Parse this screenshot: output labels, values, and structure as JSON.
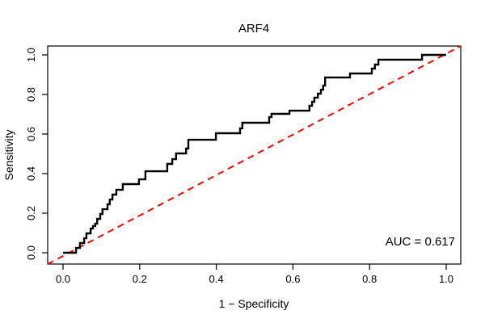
{
  "figure": {
    "background_color": "#ffffff",
    "axis_color": "#000000"
  },
  "chart_data": {
    "type": "line",
    "subtype": "roc-curve-step-plot",
    "title": "ARF4",
    "xlabel": "1 − Specificity",
    "ylabel": "Sensitivity",
    "xlim": [
      0,
      1
    ],
    "ylim": [
      0,
      1
    ],
    "grid": false,
    "legend": false,
    "x_ticks": [
      0.0,
      0.2,
      0.4,
      0.6,
      0.8,
      1.0
    ],
    "y_ticks": [
      0.0,
      0.2,
      0.4,
      0.6,
      0.8,
      1.0
    ],
    "x_tick_labels": [
      "0.0",
      "0.2",
      "0.4",
      "0.6",
      "0.8",
      "1.0"
    ],
    "y_tick_labels": [
      "0.0",
      "0.2",
      "0.4",
      "0.6",
      "0.8",
      "1.0"
    ],
    "annotation": "AUC = 0.617",
    "auc_value": 0.617,
    "series": [
      {
        "name": "ROC curve",
        "color": "#000000",
        "style": "solid",
        "line_width": 2.4,
        "points": [
          [
            0.0,
            0.0
          ],
          [
            0.034,
            0.0
          ],
          [
            0.034,
            0.024
          ],
          [
            0.044,
            0.024
          ],
          [
            0.044,
            0.049
          ],
          [
            0.055,
            0.049
          ],
          [
            0.055,
            0.073
          ],
          [
            0.061,
            0.073
          ],
          [
            0.061,
            0.098
          ],
          [
            0.072,
            0.098
          ],
          [
            0.072,
            0.122
          ],
          [
            0.078,
            0.122
          ],
          [
            0.078,
            0.135
          ],
          [
            0.084,
            0.135
          ],
          [
            0.084,
            0.147
          ],
          [
            0.089,
            0.147
          ],
          [
            0.089,
            0.171
          ],
          [
            0.097,
            0.171
          ],
          [
            0.097,
            0.196
          ],
          [
            0.103,
            0.196
          ],
          [
            0.103,
            0.22
          ],
          [
            0.116,
            0.22
          ],
          [
            0.116,
            0.245
          ],
          [
            0.122,
            0.245
          ],
          [
            0.122,
            0.269
          ],
          [
            0.129,
            0.269
          ],
          [
            0.129,
            0.294
          ],
          [
            0.139,
            0.294
          ],
          [
            0.139,
            0.318
          ],
          [
            0.156,
            0.318
          ],
          [
            0.156,
            0.347
          ],
          [
            0.198,
            0.347
          ],
          [
            0.198,
            0.371
          ],
          [
            0.215,
            0.371
          ],
          [
            0.215,
            0.412
          ],
          [
            0.272,
            0.412
          ],
          [
            0.272,
            0.449
          ],
          [
            0.285,
            0.449
          ],
          [
            0.285,
            0.473
          ],
          [
            0.295,
            0.473
          ],
          [
            0.295,
            0.502
          ],
          [
            0.321,
            0.502
          ],
          [
            0.321,
            0.527
          ],
          [
            0.327,
            0.527
          ],
          [
            0.327,
            0.571
          ],
          [
            0.399,
            0.571
          ],
          [
            0.399,
            0.604
          ],
          [
            0.462,
            0.604
          ],
          [
            0.462,
            0.629
          ],
          [
            0.468,
            0.629
          ],
          [
            0.468,
            0.657
          ],
          [
            0.538,
            0.657
          ],
          [
            0.538,
            0.686
          ],
          [
            0.544,
            0.686
          ],
          [
            0.544,
            0.702
          ],
          [
            0.591,
            0.702
          ],
          [
            0.591,
            0.718
          ],
          [
            0.643,
            0.718
          ],
          [
            0.643,
            0.743
          ],
          [
            0.65,
            0.743
          ],
          [
            0.65,
            0.763
          ],
          [
            0.656,
            0.763
          ],
          [
            0.656,
            0.784
          ],
          [
            0.665,
            0.784
          ],
          [
            0.665,
            0.804
          ],
          [
            0.673,
            0.804
          ],
          [
            0.673,
            0.824
          ],
          [
            0.679,
            0.824
          ],
          [
            0.679,
            0.845
          ],
          [
            0.684,
            0.845
          ],
          [
            0.684,
            0.886
          ],
          [
            0.749,
            0.886
          ],
          [
            0.749,
            0.906
          ],
          [
            0.806,
            0.906
          ],
          [
            0.806,
            0.931
          ],
          [
            0.814,
            0.931
          ],
          [
            0.814,
            0.951
          ],
          [
            0.823,
            0.951
          ],
          [
            0.823,
            0.976
          ],
          [
            0.937,
            0.976
          ],
          [
            0.937,
            1.0
          ],
          [
            1.0,
            1.0
          ]
        ]
      },
      {
        "name": "chance diagonal",
        "color": "#ff0000",
        "style": "dashed",
        "line_width": 2,
        "points": [
          [
            0,
            0
          ],
          [
            1,
            1
          ]
        ]
      }
    ]
  }
}
